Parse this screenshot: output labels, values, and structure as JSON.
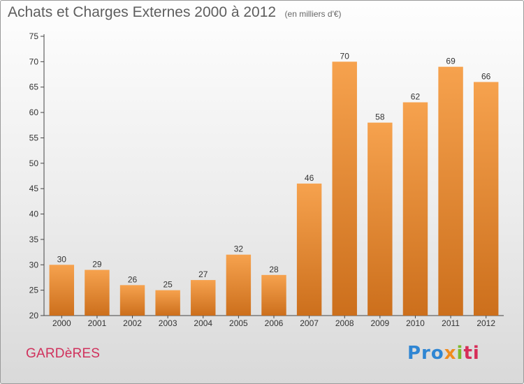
{
  "header": {
    "title": "Achats et Charges Externes 2000 à 2012",
    "unit": "(en milliers d'€)"
  },
  "footer": {
    "commune": "GARDèRES",
    "logo": [
      "Pro",
      "x",
      "i",
      "ti"
    ]
  },
  "colors": {
    "bar_light": "#f6a24e",
    "bar_dark": "#cc6f1c",
    "commune": "#d0315c"
  },
  "chart_data": {
    "type": "bar",
    "categories": [
      "2000",
      "2001",
      "2002",
      "2003",
      "2004",
      "2005",
      "2006",
      "2007",
      "2008",
      "2009",
      "2010",
      "2011",
      "2012"
    ],
    "values": [
      30,
      29,
      26,
      25,
      27,
      32,
      28,
      46,
      70,
      58,
      62,
      69,
      66
    ],
    "ylim": [
      20,
      75
    ],
    "yticks": [
      20,
      25,
      30,
      35,
      40,
      45,
      50,
      55,
      60,
      65,
      70,
      75
    ],
    "xlabel": "",
    "ylabel": "",
    "grid": false,
    "data_labels": true
  }
}
